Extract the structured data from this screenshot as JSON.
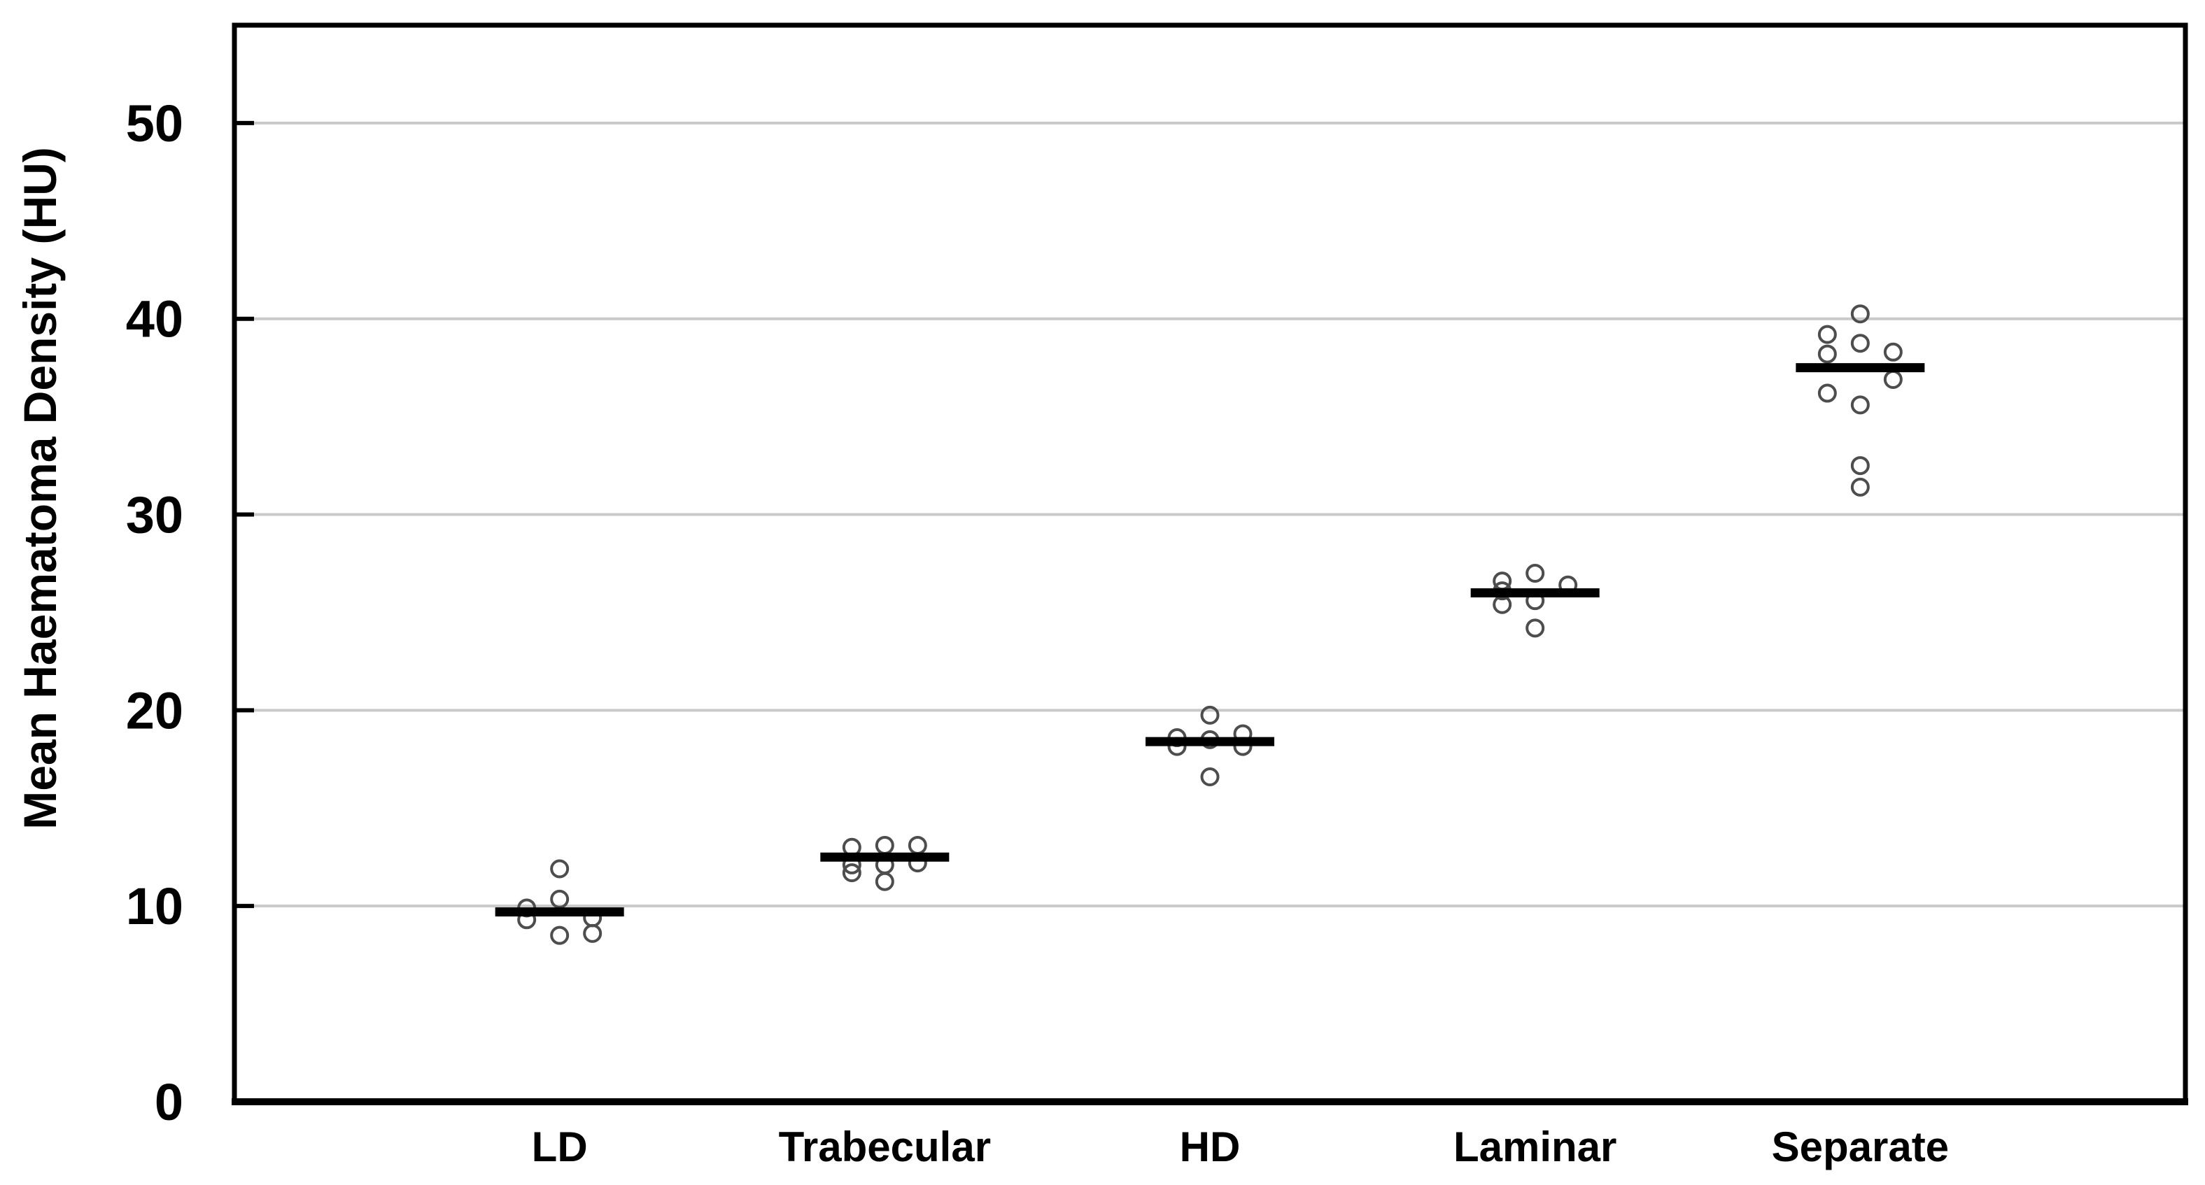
{
  "chart_data": {
    "type": "scatter",
    "title": "",
    "xlabel": "",
    "ylabel": "Mean Haematoma Density (HU)",
    "ylim": [
      0,
      55
    ],
    "yticks": [
      0,
      10,
      20,
      30,
      40,
      50
    ],
    "grid": "horizontal-gridlines-at-10-20-30-40-50",
    "legend": "none",
    "marker": "open-circle",
    "summary_line": "horizontal black bar per category (median/mean)",
    "categories": [
      "LD",
      "Trabecular",
      "HD",
      "Laminar",
      "Separate"
    ],
    "series": [
      {
        "category": "LD",
        "line_value": 9.7,
        "points": [
          {
            "dx": 0,
            "y": 11.9
          },
          {
            "dx": 0,
            "y": 10.35
          },
          {
            "dx": -47,
            "y": 9.9
          },
          {
            "dx": -47,
            "y": 9.3
          },
          {
            "dx": 47,
            "y": 9.4
          },
          {
            "dx": 47,
            "y": 8.6
          },
          {
            "dx": 0,
            "y": 8.5
          }
        ]
      },
      {
        "category": "Trabecular",
        "line_value": 12.5,
        "points": [
          {
            "dx": -47,
            "y": 13.0
          },
          {
            "dx": -47,
            "y": 12.1
          },
          {
            "dx": -47,
            "y": 11.7
          },
          {
            "dx": 0,
            "y": 13.1
          },
          {
            "dx": 0,
            "y": 12.1
          },
          {
            "dx": 0,
            "y": 11.25
          },
          {
            "dx": 47,
            "y": 13.1
          },
          {
            "dx": 47,
            "y": 12.2
          }
        ]
      },
      {
        "category": "HD",
        "line_value": 18.4,
        "points": [
          {
            "dx": 0,
            "y": 19.75
          },
          {
            "dx": -47,
            "y": 18.6
          },
          {
            "dx": -47,
            "y": 18.15
          },
          {
            "dx": 0,
            "y": 18.5
          },
          {
            "dx": 47,
            "y": 18.8
          },
          {
            "dx": 47,
            "y": 18.15
          },
          {
            "dx": 0,
            "y": 16.6
          }
        ]
      },
      {
        "category": "Laminar",
        "line_value": 26.0,
        "points": [
          {
            "dx": -47,
            "y": 26.6
          },
          {
            "dx": -47,
            "y": 26.1
          },
          {
            "dx": -47,
            "y": 25.4
          },
          {
            "dx": 0,
            "y": 27.0
          },
          {
            "dx": 0,
            "y": 25.6
          },
          {
            "dx": 0,
            "y": 24.2
          },
          {
            "dx": 47,
            "y": 26.4
          }
        ]
      },
      {
        "category": "Separate",
        "line_value": 37.5,
        "points": [
          {
            "dx": -47,
            "y": 39.2
          },
          {
            "dx": -47,
            "y": 38.2
          },
          {
            "dx": -47,
            "y": 36.2
          },
          {
            "dx": 0,
            "y": 40.25
          },
          {
            "dx": 0,
            "y": 38.75
          },
          {
            "dx": 0,
            "y": 35.6
          },
          {
            "dx": 0,
            "y": 32.5
          },
          {
            "dx": 0,
            "y": 31.4
          },
          {
            "dx": 47,
            "y": 38.3
          },
          {
            "dx": 47,
            "y": 36.9
          }
        ]
      }
    ]
  },
  "style": {
    "background_color": "#ffffff",
    "axis_color": "#000000",
    "gridline_color": "#c9c9c9",
    "marker_color": "#4d4d4d",
    "summary_line_color": "#000000",
    "text_color": "#000000"
  }
}
